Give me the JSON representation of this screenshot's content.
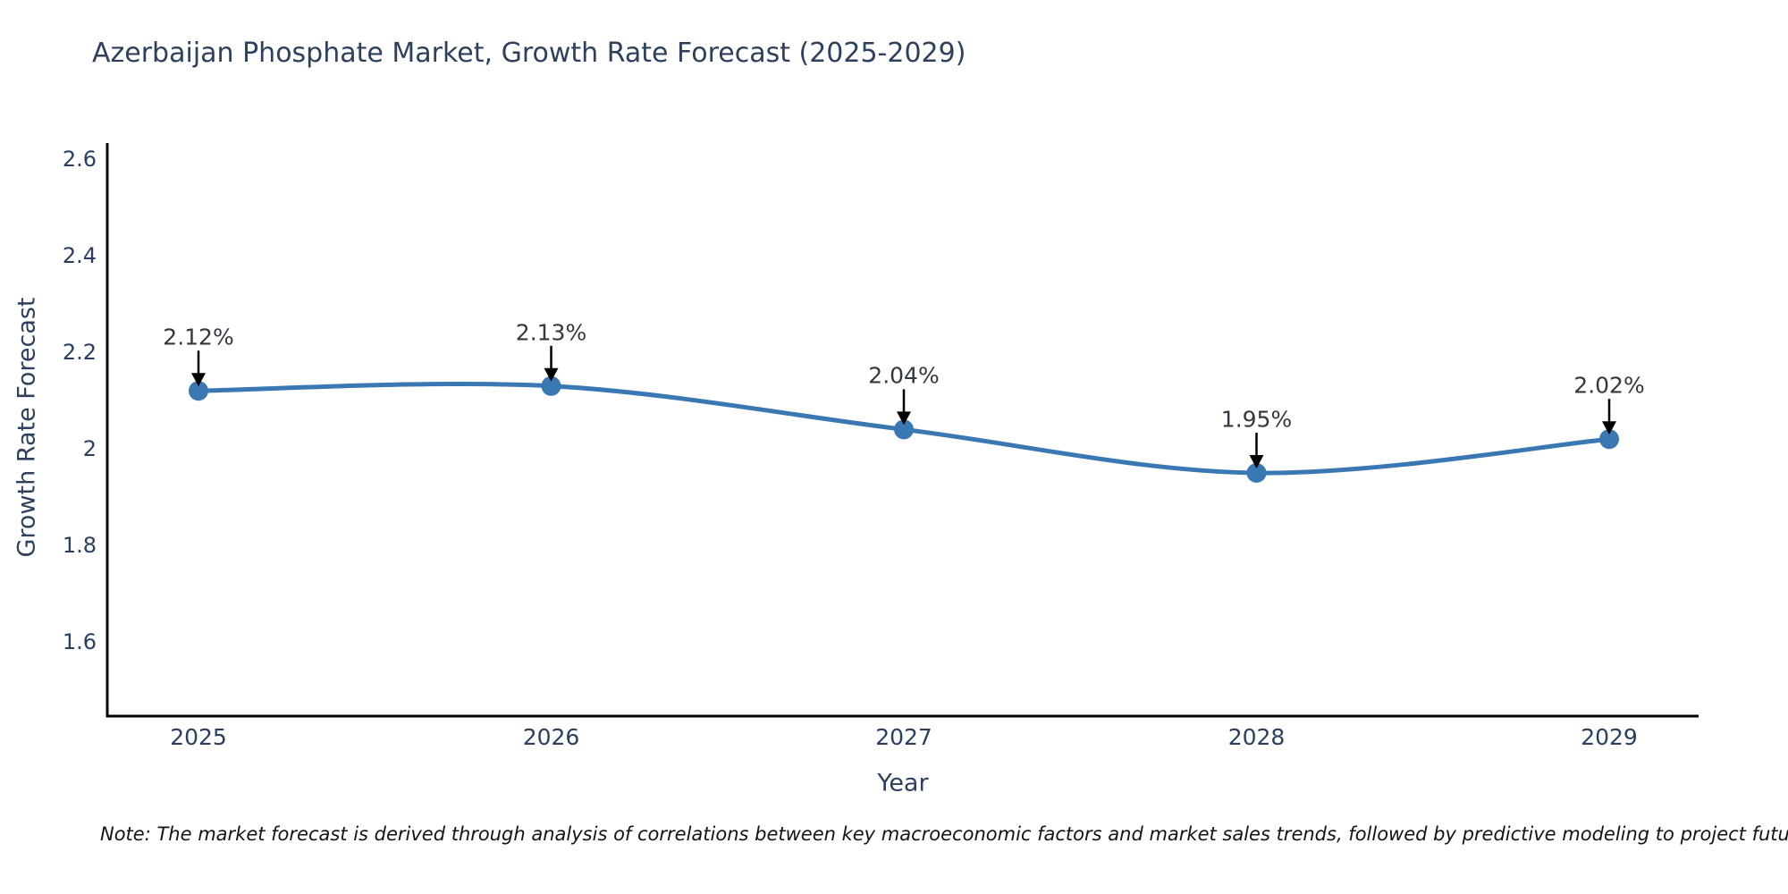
{
  "title": "Azerbaijan Phosphate Market, Growth Rate Forecast (2025-2029)",
  "note": "Note: The market forecast is derived through analysis of correlations between key macroeconomic factors and market sales trends, followed by predictive modeling to project future sales",
  "chart_data": {
    "type": "line",
    "line_shape": "spline",
    "title": "Azerbaijan Phosphate Market, Growth Rate Forecast (2025-2029)",
    "xlabel": "Year",
    "ylabel": "Growth Rate Forecast",
    "categories": [
      "2025",
      "2026",
      "2027",
      "2028",
      "2029"
    ],
    "values": [
      2.12,
      2.13,
      2.04,
      1.95,
      2.02
    ],
    "point_labels": [
      "2.12%",
      "2.13%",
      "2.04%",
      "1.95%",
      "2.02%"
    ],
    "yticks": [
      2.6,
      2.4,
      2.2,
      2,
      1.8,
      1.6
    ],
    "ytick_labels": [
      "2.6",
      "2.4",
      "2.2",
      "2",
      "1.8",
      "1.6"
    ],
    "ylim": [
      1.44,
      2.64
    ],
    "grid": false,
    "legend": "none",
    "line_color": "#3a78b4",
    "marker_color": "#3a78b4",
    "arrow_color": "#000000",
    "axis_color": "#000000",
    "text_color": "#2a3f5f"
  }
}
